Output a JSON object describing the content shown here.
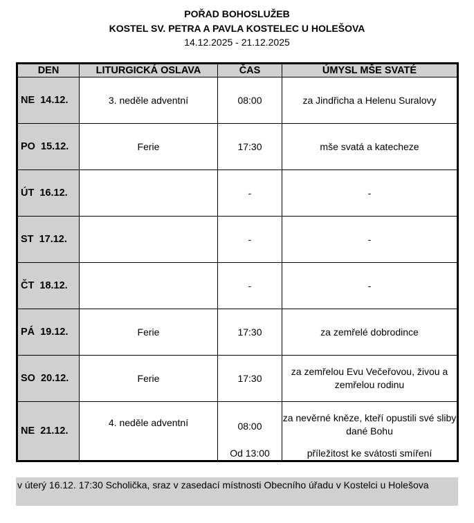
{
  "header": {
    "title": "POŘAD BOHOSLUŽEB",
    "church": "KOSTEL SV. PETRA A PAVLA KOSTELEC U HOLEŠOVA",
    "dates": "14.12.2025 - 21.12.2025"
  },
  "table": {
    "columns": [
      "DEN",
      "LITURGICKÁ OSLAVA",
      "ČAS",
      "ÚMYSL MŠE SVATÉ"
    ],
    "rows": [
      {
        "day": "NE  14.12.",
        "celebration": "3. neděle adventní",
        "time": "08:00",
        "intention": "za Jindřicha a Helenu Suralovy"
      },
      {
        "day": "PO  15.12.",
        "celebration": "Ferie",
        "time": "17:30",
        "intention": "mše svatá a katecheze"
      },
      {
        "day": "ÚT  16.12.",
        "celebration": "",
        "time": "-",
        "intention": "-"
      },
      {
        "day": "ST  17.12.",
        "celebration": "",
        "time": "-",
        "intention": "-"
      },
      {
        "day": "ČT  18.12.",
        "celebration": "",
        "time": "-",
        "intention": "-"
      },
      {
        "day": "PÁ  19.12.",
        "celebration": "Ferie",
        "time": "17:30",
        "intention": "za zemřelé dobrodince"
      },
      {
        "day": "SO  20.12.",
        "celebration": "Ferie",
        "time": "17:30",
        "intention": "za zemřelou Evu Večeřovou, živou a zemřelou rodinu"
      },
      {
        "day": "NE  21.12.",
        "celebration": "4. neděle adventní",
        "time": "08:00",
        "intention": "za nevěrné kněze, kteří opustili své sliby dané Bohu",
        "time2": "Od 13:00",
        "intention2": "příležitost ke svátosti smíření"
      }
    ]
  },
  "note": "v úterý 16.12. 17:30 Scholička, sraz v zasedací místnosti Obecního úřadu v Kostelci u Holešova"
}
